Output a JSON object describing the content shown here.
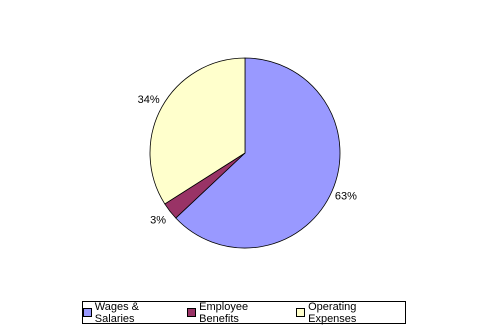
{
  "chart_data": {
    "type": "pie",
    "categories": [
      "Wages & Salaries",
      "Employee Benefits",
      "Operating Expenses"
    ],
    "values": [
      63,
      3,
      34
    ],
    "value_labels": [
      "63%",
      "3%",
      "34%"
    ],
    "colors": [
      "#9999ff",
      "#993366",
      "#ffffcc"
    ],
    "legend": "bottom"
  }
}
